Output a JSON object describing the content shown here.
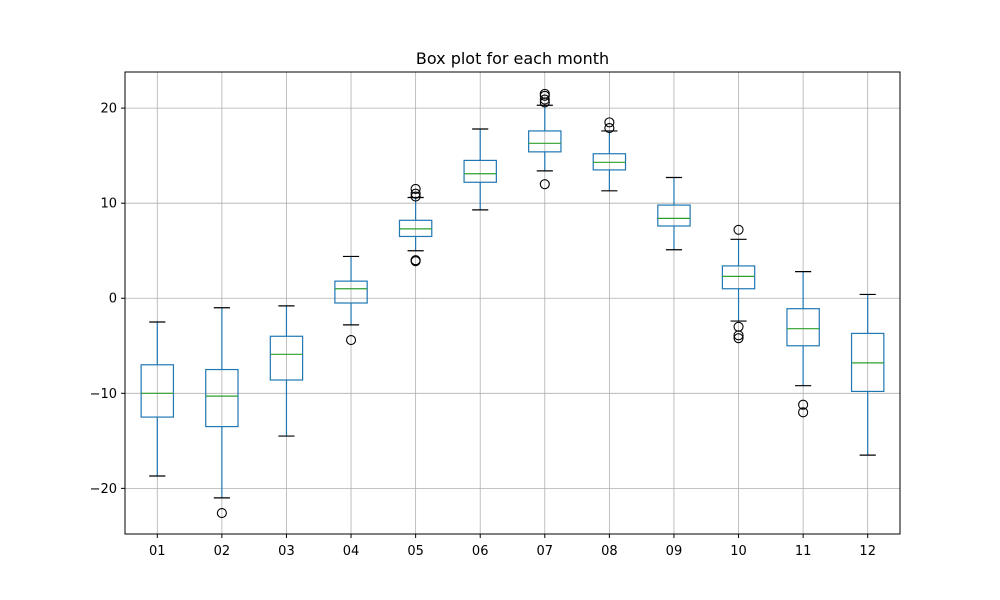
{
  "chart_data": {
    "type": "box",
    "title": "Box plot for each month",
    "xlabel": "",
    "ylabel": "",
    "categories": [
      "01",
      "02",
      "03",
      "04",
      "05",
      "06",
      "07",
      "08",
      "09",
      "10",
      "11",
      "12"
    ],
    "ylim": [
      -24.8,
      23.8
    ],
    "yticks": [
      -20,
      -10,
      0,
      10,
      20
    ],
    "ytick_labels": [
      "−20",
      "−10",
      "0",
      "10",
      "20"
    ],
    "grid": true,
    "boxes": [
      {
        "whisker_low": -18.7,
        "q1": -12.5,
        "median": -10.0,
        "q3": -7.0,
        "whisker_high": -2.5,
        "fliers": []
      },
      {
        "whisker_low": -21.0,
        "q1": -13.5,
        "median": -10.3,
        "q3": -7.5,
        "whisker_high": -1.0,
        "fliers": [
          -22.6
        ]
      },
      {
        "whisker_low": -14.5,
        "q1": -8.6,
        "median": -5.9,
        "q3": -4.0,
        "whisker_high": -0.8,
        "fliers": []
      },
      {
        "whisker_low": -2.8,
        "q1": -0.5,
        "median": 1.0,
        "q3": 1.8,
        "whisker_high": 4.4,
        "fliers": [
          -4.4
        ]
      },
      {
        "whisker_low": 5.0,
        "q1": 6.5,
        "median": 7.3,
        "q3": 8.2,
        "whisker_high": 10.6,
        "fliers": [
          3.9,
          4.0,
          10.7,
          11.0,
          11.5
        ]
      },
      {
        "whisker_low": 9.3,
        "q1": 12.2,
        "median": 13.1,
        "q3": 14.5,
        "whisker_high": 17.8,
        "fliers": []
      },
      {
        "whisker_low": 13.4,
        "q1": 15.4,
        "median": 16.3,
        "q3": 17.6,
        "whisker_high": 20.3,
        "fliers": [
          12.0,
          20.6,
          20.9,
          21.3,
          21.5
        ]
      },
      {
        "whisker_low": 11.3,
        "q1": 13.5,
        "median": 14.3,
        "q3": 15.2,
        "whisker_high": 17.6,
        "fliers": [
          17.9,
          18.5
        ]
      },
      {
        "whisker_low": 5.1,
        "q1": 7.6,
        "median": 8.4,
        "q3": 9.8,
        "whisker_high": 12.7,
        "fliers": []
      },
      {
        "whisker_low": -2.4,
        "q1": 1.0,
        "median": 2.3,
        "q3": 3.4,
        "whisker_high": 6.2,
        "fliers": [
          -4.2,
          -3.9,
          -3.0,
          7.2
        ]
      },
      {
        "whisker_low": -9.2,
        "q1": -5.0,
        "median": -3.2,
        "q3": -1.1,
        "whisker_high": 2.8,
        "fliers": [
          -12.0,
          -11.2
        ]
      },
      {
        "whisker_low": -16.5,
        "q1": -9.8,
        "median": -6.8,
        "q3": -3.7,
        "whisker_high": 0.4,
        "fliers": []
      }
    ],
    "colors": {
      "box": "#1f77b4",
      "median": "#2ca02c",
      "grid": "#b0b0b0",
      "flier": "#000000",
      "cap": "#000000"
    }
  }
}
